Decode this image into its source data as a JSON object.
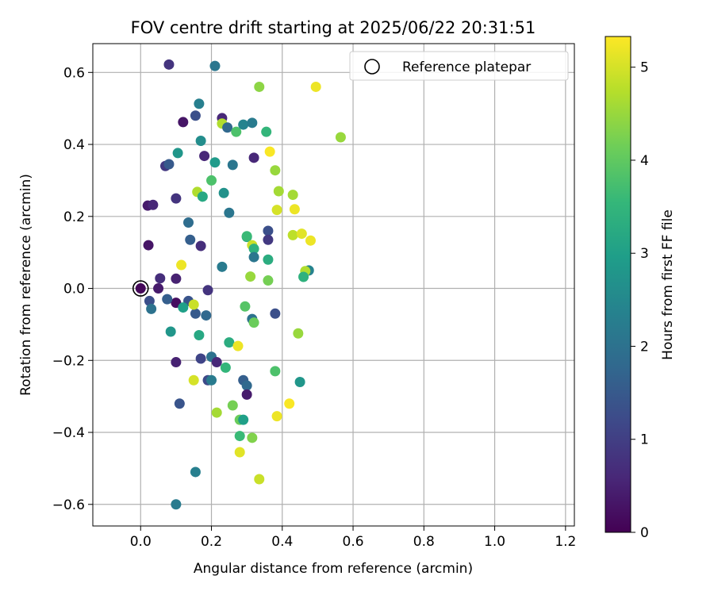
{
  "chart_data": {
    "type": "scatter",
    "title": "FOV centre drift starting at 2025/06/22 20:31:51",
    "xlabel": "Angular distance from reference (arcmin)",
    "ylabel": "Rotation from reference (arcmin)",
    "xlim": [
      -0.135,
      1.225
    ],
    "ylim": [
      -0.66,
      0.68
    ],
    "xticks": [
      0.0,
      0.2,
      0.4,
      0.6,
      0.8,
      1.0,
      1.2
    ],
    "xtick_labels": [
      "0.0",
      "0.2",
      "0.4",
      "0.6",
      "0.8",
      "1.0",
      "1.2"
    ],
    "yticks": [
      -0.6,
      -0.4,
      -0.2,
      0.0,
      0.2,
      0.4,
      0.6
    ],
    "ytick_labels": [
      "−0.6",
      "−0.4",
      "−0.2",
      "0.0",
      "0.2",
      "0.4",
      "0.6"
    ],
    "grid": true,
    "legend": {
      "placement": "upper right",
      "entries": [
        {
          "label": "Reference platepar",
          "marker": "hollow-circle",
          "color": "#000000"
        }
      ]
    },
    "reference_point": {
      "x": 0.0,
      "y": 0.0
    },
    "colorbar": {
      "label": "Hours from first FF file",
      "range": [
        0,
        5.33
      ],
      "ticks": [
        0,
        1,
        2,
        3,
        4,
        5
      ],
      "tick_labels": [
        "0",
        "1",
        "2",
        "3",
        "4",
        "5"
      ],
      "colormap": "viridis"
    },
    "points": [
      {
        "x": 0.0,
        "y": 0.0,
        "h": 0.1
      },
      {
        "x": 0.02,
        "y": 0.23,
        "h": 0.4
      },
      {
        "x": 0.035,
        "y": 0.232,
        "h": 0.6
      },
      {
        "x": 0.022,
        "y": 0.12,
        "h": 0.3
      },
      {
        "x": 0.05,
        "y": 0.0,
        "h": 0.4
      },
      {
        "x": 0.055,
        "y": 0.028,
        "h": 0.7
      },
      {
        "x": 0.1,
        "y": 0.027,
        "h": 0.5
      },
      {
        "x": 0.1,
        "y": -0.04,
        "h": 0.2
      },
      {
        "x": 0.1,
        "y": -0.205,
        "h": 0.5
      },
      {
        "x": 0.025,
        "y": -0.035,
        "h": 1.3
      },
      {
        "x": 0.03,
        "y": -0.057,
        "h": 2.0
      },
      {
        "x": 0.075,
        "y": -0.03,
        "h": 1.6
      },
      {
        "x": 0.085,
        "y": -0.12,
        "h": 2.8
      },
      {
        "x": 0.135,
        "y": -0.035,
        "h": 1.4
      },
      {
        "x": 0.12,
        "y": -0.053,
        "h": 3.0
      },
      {
        "x": 0.155,
        "y": -0.07,
        "h": 1.5
      },
      {
        "x": 0.15,
        "y": -0.045,
        "h": 4.9
      },
      {
        "x": 0.185,
        "y": -0.075,
        "h": 1.8
      },
      {
        "x": 0.19,
        "y": -0.005,
        "h": 0.8
      },
      {
        "x": 0.165,
        "y": -0.13,
        "h": 3.2
      },
      {
        "x": 0.17,
        "y": -0.195,
        "h": 1.1
      },
      {
        "x": 0.2,
        "y": -0.19,
        "h": 2.0
      },
      {
        "x": 0.19,
        "y": -0.255,
        "h": 1.2
      },
      {
        "x": 0.2,
        "y": -0.255,
        "h": 2.2
      },
      {
        "x": 0.15,
        "y": -0.255,
        "h": 5.0
      },
      {
        "x": 0.11,
        "y": -0.32,
        "h": 1.4
      },
      {
        "x": 0.155,
        "y": -0.51,
        "h": 2.3
      },
      {
        "x": 0.1,
        "y": -0.6,
        "h": 2.2
      },
      {
        "x": 0.215,
        "y": -0.205,
        "h": 0.6
      },
      {
        "x": 0.215,
        "y": -0.345,
        "h": 4.6
      },
      {
        "x": 0.24,
        "y": -0.22,
        "h": 3.5
      },
      {
        "x": 0.25,
        "y": -0.15,
        "h": 3.3
      },
      {
        "x": 0.275,
        "y": -0.16,
        "h": 5.2
      },
      {
        "x": 0.26,
        "y": -0.325,
        "h": 4.2
      },
      {
        "x": 0.28,
        "y": -0.365,
        "h": 4.1
      },
      {
        "x": 0.29,
        "y": -0.365,
        "h": 3.0
      },
      {
        "x": 0.28,
        "y": -0.41,
        "h": 3.6
      },
      {
        "x": 0.28,
        "y": -0.455,
        "h": 5.1
      },
      {
        "x": 0.29,
        "y": -0.255,
        "h": 1.6
      },
      {
        "x": 0.3,
        "y": -0.27,
        "h": 1.8
      },
      {
        "x": 0.3,
        "y": -0.295,
        "h": 0.4
      },
      {
        "x": 0.315,
        "y": -0.415,
        "h": 4.3
      },
      {
        "x": 0.335,
        "y": -0.53,
        "h": 4.9
      },
      {
        "x": 0.295,
        "y": -0.05,
        "h": 3.9
      },
      {
        "x": 0.315,
        "y": -0.085,
        "h": 2.0
      },
      {
        "x": 0.32,
        "y": -0.095,
        "h": 4.1
      },
      {
        "x": 0.38,
        "y": -0.07,
        "h": 1.3
      },
      {
        "x": 0.38,
        "y": -0.23,
        "h": 3.8
      },
      {
        "x": 0.385,
        "y": -0.355,
        "h": 5.2
      },
      {
        "x": 0.42,
        "y": -0.32,
        "h": 5.3
      },
      {
        "x": 0.445,
        "y": -0.125,
        "h": 4.5
      },
      {
        "x": 0.45,
        "y": -0.26,
        "h": 2.8
      },
      {
        "x": 0.115,
        "y": 0.065,
        "h": 5.2
      },
      {
        "x": 0.17,
        "y": 0.118,
        "h": 0.7
      },
      {
        "x": 0.14,
        "y": 0.135,
        "h": 1.6
      },
      {
        "x": 0.135,
        "y": 0.183,
        "h": 1.9
      },
      {
        "x": 0.1,
        "y": 0.25,
        "h": 0.8
      },
      {
        "x": 0.16,
        "y": 0.268,
        "h": 4.7
      },
      {
        "x": 0.175,
        "y": 0.255,
        "h": 3.2
      },
      {
        "x": 0.2,
        "y": 0.3,
        "h": 3.8
      },
      {
        "x": 0.235,
        "y": 0.265,
        "h": 2.7
      },
      {
        "x": 0.25,
        "y": 0.21,
        "h": 2.1
      },
      {
        "x": 0.23,
        "y": 0.06,
        "h": 2.2
      },
      {
        "x": 0.3,
        "y": 0.143,
        "h": 3.1
      },
      {
        "x": 0.3,
        "y": 0.145,
        "h": 3.6
      },
      {
        "x": 0.315,
        "y": 0.12,
        "h": 4.9
      },
      {
        "x": 0.32,
        "y": 0.11,
        "h": 3.4
      },
      {
        "x": 0.32,
        "y": 0.087,
        "h": 2.1
      },
      {
        "x": 0.31,
        "y": 0.033,
        "h": 4.5
      },
      {
        "x": 0.36,
        "y": 0.16,
        "h": 1.3
      },
      {
        "x": 0.36,
        "y": 0.135,
        "h": 0.9
      },
      {
        "x": 0.36,
        "y": 0.08,
        "h": 3.3
      },
      {
        "x": 0.36,
        "y": 0.022,
        "h": 4.2
      },
      {
        "x": 0.39,
        "y": 0.27,
        "h": 4.6
      },
      {
        "x": 0.385,
        "y": 0.218,
        "h": 5.0
      },
      {
        "x": 0.38,
        "y": 0.328,
        "h": 4.5
      },
      {
        "x": 0.43,
        "y": 0.26,
        "h": 4.6
      },
      {
        "x": 0.435,
        "y": 0.22,
        "h": 5.2
      },
      {
        "x": 0.43,
        "y": 0.148,
        "h": 4.8
      },
      {
        "x": 0.455,
        "y": 0.152,
        "h": 5.1
      },
      {
        "x": 0.48,
        "y": 0.133,
        "h": 5.2
      },
      {
        "x": 0.475,
        "y": 0.05,
        "h": 2.4
      },
      {
        "x": 0.465,
        "y": 0.048,
        "h": 4.7
      },
      {
        "x": 0.46,
        "y": 0.032,
        "h": 3.4
      },
      {
        "x": 0.07,
        "y": 0.34,
        "h": 0.9
      },
      {
        "x": 0.08,
        "y": 0.345,
        "h": 1.5
      },
      {
        "x": 0.105,
        "y": 0.376,
        "h": 2.8
      },
      {
        "x": 0.12,
        "y": 0.462,
        "h": 0.3
      },
      {
        "x": 0.155,
        "y": 0.48,
        "h": 1.3
      },
      {
        "x": 0.165,
        "y": 0.513,
        "h": 2.3
      },
      {
        "x": 0.17,
        "y": 0.41,
        "h": 2.6
      },
      {
        "x": 0.18,
        "y": 0.368,
        "h": 0.6
      },
      {
        "x": 0.21,
        "y": 0.35,
        "h": 2.9
      },
      {
        "x": 0.26,
        "y": 0.343,
        "h": 2.1
      },
      {
        "x": 0.23,
        "y": 0.473,
        "h": 0.6
      },
      {
        "x": 0.23,
        "y": 0.458,
        "h": 4.7
      },
      {
        "x": 0.245,
        "y": 0.447,
        "h": 1.8
      },
      {
        "x": 0.27,
        "y": 0.435,
        "h": 3.8
      },
      {
        "x": 0.29,
        "y": 0.455,
        "h": 2.4
      },
      {
        "x": 0.315,
        "y": 0.46,
        "h": 2.2
      },
      {
        "x": 0.32,
        "y": 0.363,
        "h": 0.6
      },
      {
        "x": 0.355,
        "y": 0.435,
        "h": 3.5
      },
      {
        "x": 0.365,
        "y": 0.38,
        "h": 5.3
      },
      {
        "x": 0.335,
        "y": 0.56,
        "h": 4.4
      },
      {
        "x": 0.495,
        "y": 0.56,
        "h": 5.2
      },
      {
        "x": 0.565,
        "y": 0.42,
        "h": 4.5
      },
      {
        "x": 0.08,
        "y": 0.622,
        "h": 0.8
      },
      {
        "x": 0.21,
        "y": 0.618,
        "h": 2.1
      }
    ]
  }
}
